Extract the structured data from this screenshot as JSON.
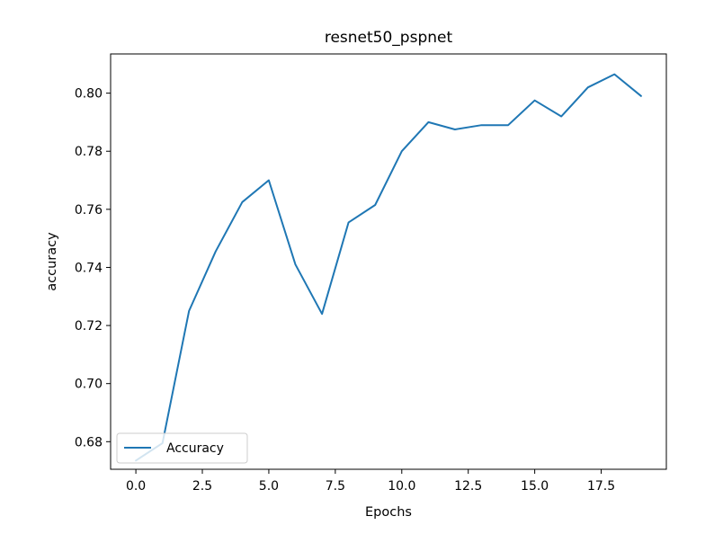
{
  "chart_data": {
    "type": "line",
    "title": "resnet50_pspnet",
    "xlabel": "Epochs",
    "ylabel": "accuracy",
    "xlim": [
      -0.95,
      19.95
    ],
    "ylim": [
      0.6705,
      0.8135
    ],
    "xticks": [
      0.0,
      2.5,
      5.0,
      7.5,
      10.0,
      12.5,
      15.0,
      17.5
    ],
    "xtick_labels": [
      "0.0",
      "2.5",
      "5.0",
      "7.5",
      "10.0",
      "12.5",
      "15.0",
      "17.5"
    ],
    "yticks": [
      0.68,
      0.7,
      0.72,
      0.74,
      0.76,
      0.78,
      0.8
    ],
    "ytick_labels": [
      "0.68",
      "0.70",
      "0.72",
      "0.74",
      "0.76",
      "0.78",
      "0.80"
    ],
    "grid": false,
    "legend_position": "lower-left",
    "series": [
      {
        "name": "Accuracy",
        "color": "#1f77b4",
        "x": [
          0,
          1,
          2,
          3,
          4,
          5,
          6,
          7,
          8,
          9,
          10,
          11,
          12,
          13,
          14,
          15,
          16,
          17,
          18,
          19
        ],
        "values": [
          0.6735,
          0.6795,
          0.725,
          0.7455,
          0.7625,
          0.77,
          0.741,
          0.724,
          0.7555,
          0.7615,
          0.78,
          0.79,
          0.7875,
          0.789,
          0.789,
          0.7975,
          0.792,
          0.802,
          0.8065,
          0.799
        ]
      }
    ]
  }
}
